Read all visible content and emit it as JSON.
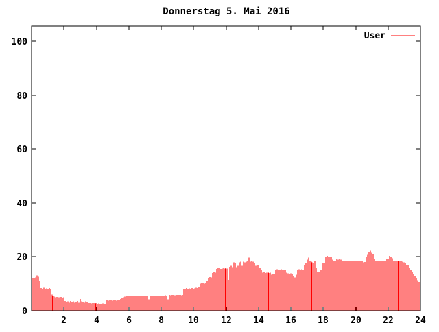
{
  "title": "Donnerstag 5. Mai 2016",
  "legend": {
    "label": "User",
    "sample_color": "#ff0000"
  },
  "colors": {
    "background": "#ffffff",
    "axis": "#000000",
    "text": "#000000",
    "series": "#ff0000"
  },
  "chart_data": {
    "type": "bar",
    "subtype": "impulses",
    "title": "Donnerstag 5. Mai 2016",
    "xlabel": "",
    "ylabel": "",
    "xlim": [
      0,
      24
    ],
    "ylim": [
      0,
      105
    ],
    "x_ticks": [
      2,
      4,
      6,
      8,
      10,
      12,
      14,
      16,
      18,
      20,
      22,
      24
    ],
    "y_ticks": [
      0,
      20,
      40,
      60,
      80,
      100
    ],
    "grid": false,
    "legend_position": "top-right-inside",
    "series": [
      {
        "name": "User",
        "color": "#ff0000",
        "x_unit": "hours",
        "x_start": 0.083333,
        "x_step": 0.083333,
        "values": [
          12.2,
          12.0,
          12.4,
          13.1,
          12.6,
          11.2,
          8.4,
          8.2,
          8.5,
          8.0,
          8.3,
          8.1,
          8.4,
          8.2,
          6.0,
          5.3,
          5.2,
          5.0,
          5.1,
          4.9,
          5.0,
          5.1,
          4.8,
          5.0,
          3.5,
          3.3,
          3.4,
          3.2,
          3.5,
          3.3,
          3.4,
          3.2,
          3.3,
          3.5,
          3.2,
          4.3,
          3.4,
          3.3,
          3.2,
          3.4,
          3.3,
          2.9,
          2.8,
          2.7,
          2.8,
          2.9,
          2.7,
          2.8,
          2.6,
          2.7,
          2.5,
          2.6,
          2.7,
          2.5,
          2.6,
          3.8,
          3.7,
          3.9,
          3.8,
          3.7,
          3.8,
          3.9,
          3.7,
          3.8,
          3.9,
          4.3,
          4.7,
          5.0,
          5.2,
          5.3,
          5.4,
          5.5,
          5.5,
          5.4,
          5.6,
          5.5,
          5.3,
          5.5,
          5.6,
          5.4,
          5.5,
          5.6,
          5.5,
          5.4,
          5.5,
          5.6,
          4.2,
          5.5,
          5.4,
          5.6,
          5.5,
          5.4,
          5.5,
          5.6,
          5.4,
          5.5,
          5.6,
          5.5,
          5.7,
          5.5,
          4.2,
          5.8,
          5.7,
          5.8,
          5.9,
          5.7,
          5.8,
          5.9,
          5.8,
          5.9,
          5.7,
          5.8,
          8.0,
          8.2,
          8.4,
          8.1,
          8.3,
          8.2,
          8.4,
          8.2,
          8.3,
          8.5,
          8.4,
          8.6,
          10.0,
          10.2,
          10.4,
          10.1,
          10.3,
          11.2,
          12.0,
          12.5,
          12.4,
          14.0,
          14.2,
          14.1,
          15.5,
          16.0,
          15.8,
          15.5,
          15.7,
          16.0,
          15.6,
          15.8,
          15.7,
          11.5,
          16.3,
          16.7,
          16.2,
          18.0,
          17.5,
          16.2,
          16.7,
          18.0,
          18.2,
          16.7,
          18.2,
          18.0,
          18.2,
          18.3,
          19.7,
          18.2,
          18.3,
          18.2,
          17.5,
          16.7,
          17.0,
          17.1,
          15.9,
          15.0,
          14.1,
          14.2,
          14.0,
          14.1,
          14.2,
          14.0,
          14.1,
          13.3,
          13.7,
          13.5,
          15.2,
          15.4,
          15.3,
          15.2,
          15.4,
          15.3,
          15.2,
          15.3,
          14.1,
          13.9,
          13.8,
          13.9,
          13.8,
          12.8,
          12.4,
          13.3,
          15.2,
          15.4,
          15.3,
          15.4,
          15.2,
          17.0,
          17.5,
          18.9,
          19.7,
          18.4,
          18.2,
          18.0,
          17.8,
          18.3,
          15.8,
          14.2,
          14.5,
          15.0,
          15.2,
          17.6,
          17.7,
          20.0,
          20.4,
          20.0,
          19.8,
          20.1,
          18.9,
          18.4,
          18.6,
          19.3,
          18.9,
          19.1,
          18.9,
          18.5,
          18.4,
          18.6,
          18.5,
          18.4,
          18.6,
          18.4,
          18.5,
          18.3,
          18.5,
          18.4,
          18.4,
          18.5,
          18.3,
          18.4,
          18.5,
          18.0,
          18.1,
          20.0,
          20.8,
          21.9,
          22.3,
          21.5,
          21.0,
          19.3,
          18.6,
          18.4,
          18.5,
          18.6,
          18.4,
          18.5,
          18.6,
          18.5,
          19.2,
          19.3,
          20.4,
          20.0,
          19.5,
          18.6,
          18.4,
          18.5,
          18.6,
          18.4,
          18.5,
          18.6,
          18.2,
          18.0,
          17.5,
          17.0,
          16.8,
          16.0,
          15.3,
          14.5,
          13.5,
          12.8,
          12.0,
          11.3,
          10.7,
          10.5
        ]
      }
    ]
  }
}
